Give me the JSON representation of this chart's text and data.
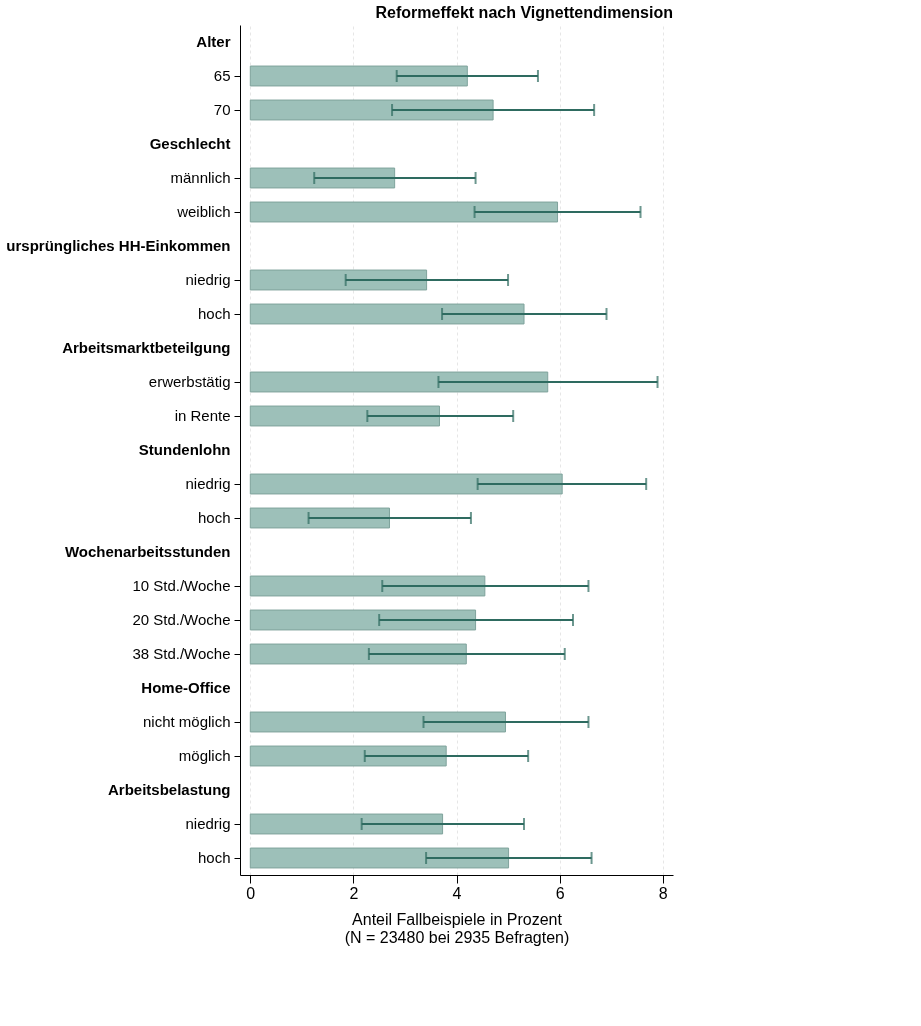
{
  "chart_data": {
    "type": "bar",
    "orientation": "horizontal",
    "title": "Reformeffekt nach Vignettendimension",
    "xlabel": "Anteil Fallbeispiele in Prozent\n(N = 23480 bei 2935 Befragten)",
    "categories": [
      "Alter",
      "65",
      "70",
      "Geschlecht",
      "männlich",
      "weiblich",
      "ursprüngliches HH-Einkommen",
      "niedrig",
      "hoch",
      "Arbeitsmarktbeteilgung",
      "erwerbstätig",
      "in Rente",
      "Stundenlohn",
      "niedrig",
      "hoch",
      "Wochenarbeitsstunden",
      "10 Std./Woche",
      "20 Std./Woche",
      "38 Std./Woche",
      "Home-Office",
      "nicht möglich",
      "möglich",
      "Arbeitsbelastung",
      "niedrig",
      "hoch"
    ],
    "series": [
      {
        "color": "#9dc0b9",
        "values": [
          null,
          4.21,
          4.71,
          null,
          2.8,
          5.96,
          null,
          3.42,
          5.31,
          null,
          5.77,
          3.67,
          null,
          6.05,
          2.7,
          null,
          4.55,
          4.37,
          4.19,
          null,
          4.95,
          3.8,
          null,
          3.73,
          5.01
        ],
        "errors": [
          null,
          [
            2.84,
            5.58
          ],
          [
            2.75,
            6.67
          ],
          null,
          [
            1.24,
            4.37
          ],
          [
            4.35,
            7.57
          ],
          null,
          [
            1.85,
            5.0
          ],
          [
            3.72,
            6.91
          ],
          null,
          [
            3.65,
            7.9
          ],
          [
            2.27,
            5.1
          ],
          null,
          [
            4.41,
            7.68
          ],
          [
            1.13,
            4.28
          ],
          null,
          [
            2.56,
            6.56
          ],
          [
            2.5,
            6.26
          ],
          [
            2.3,
            6.1
          ],
          null,
          [
            3.36,
            6.56
          ],
          [
            2.22,
            5.39
          ],
          null,
          [
            2.16,
            5.31
          ],
          [
            3.41,
            6.62
          ]
        ]
      }
    ],
    "xlim": [
      -0.2,
      8.2
    ],
    "xticks": [
      0,
      2,
      4,
      6,
      8
    ],
    "grid": "x"
  }
}
